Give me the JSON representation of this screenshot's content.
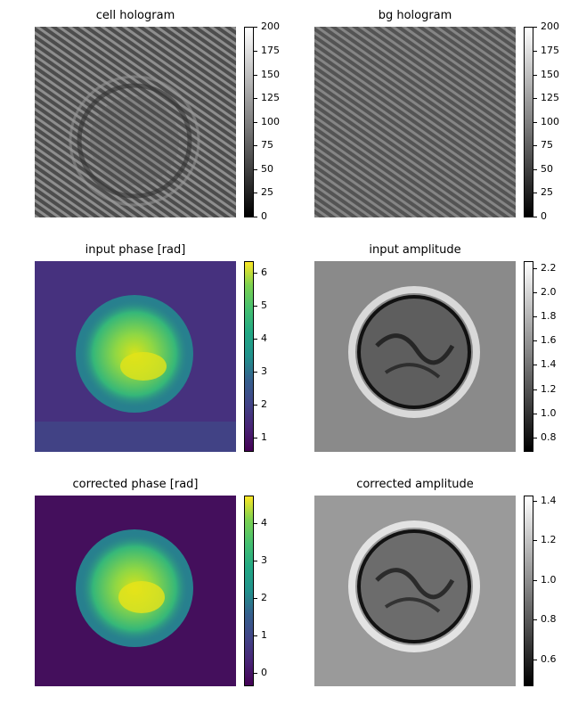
{
  "figure": {
    "panels": [
      {
        "id": "cell-hologram",
        "title": "cell hologram",
        "colormap": "gray",
        "colorbar": {
          "min": 0,
          "max": 200,
          "ticks": [
            "0",
            "25",
            "50",
            "75",
            "100",
            "125",
            "150",
            "175",
            "200"
          ]
        },
        "content": "fringes-ring"
      },
      {
        "id": "bg-hologram",
        "title": "bg hologram",
        "colormap": "gray",
        "colorbar": {
          "min": 0,
          "max": 200,
          "ticks": [
            "0",
            "25",
            "50",
            "75",
            "100",
            "125",
            "150",
            "175",
            "200"
          ]
        },
        "content": "fringes"
      },
      {
        "id": "input-phase",
        "title": "input phase [rad]",
        "colormap": "viridis",
        "colorbar": {
          "min": 0.55,
          "max": 6.35,
          "ticks": [
            "1",
            "2",
            "3",
            "4",
            "5",
            "6"
          ]
        },
        "content": "phase-blob"
      },
      {
        "id": "input-amplitude",
        "title": "input amplitude",
        "colormap": "gray",
        "colorbar": {
          "min": 0.68,
          "max": 2.26,
          "ticks": [
            "0.8",
            "1.0",
            "1.2",
            "1.4",
            "1.6",
            "1.8",
            "2.0",
            "2.2"
          ]
        },
        "content": "amplitude-ring"
      },
      {
        "id": "corrected-phase",
        "title": "corrected phase [rad]",
        "colormap": "viridis",
        "colorbar": {
          "min": -0.35,
          "max": 4.75,
          "ticks": [
            "0",
            "1",
            "2",
            "3",
            "4"
          ]
        },
        "content": "phase-blob"
      },
      {
        "id": "corrected-amplitude",
        "title": "corrected amplitude",
        "colormap": "gray",
        "colorbar": {
          "min": 0.47,
          "max": 1.43,
          "ticks": [
            "0.6",
            "0.8",
            "1.0",
            "1.2",
            "1.4"
          ]
        },
        "content": "amplitude-ring"
      }
    ]
  },
  "chart_data": [
    {
      "type": "heatmap",
      "title": "cell hologram",
      "colorbar_range": [
        0,
        200
      ],
      "colormap": "gray"
    },
    {
      "type": "heatmap",
      "title": "bg hologram",
      "colorbar_range": [
        0,
        200
      ],
      "colormap": "gray"
    },
    {
      "type": "heatmap",
      "title": "input phase [rad]",
      "colorbar_range": [
        0.55,
        6.35
      ],
      "colormap": "viridis"
    },
    {
      "type": "heatmap",
      "title": "input amplitude",
      "colorbar_range": [
        0.68,
        2.26
      ],
      "colormap": "gray"
    },
    {
      "type": "heatmap",
      "title": "corrected phase [rad]",
      "colorbar_range": [
        -0.35,
        4.75
      ],
      "colormap": "viridis"
    },
    {
      "type": "heatmap",
      "title": "corrected amplitude",
      "colorbar_range": [
        0.47,
        1.43
      ],
      "colormap": "gray"
    }
  ]
}
